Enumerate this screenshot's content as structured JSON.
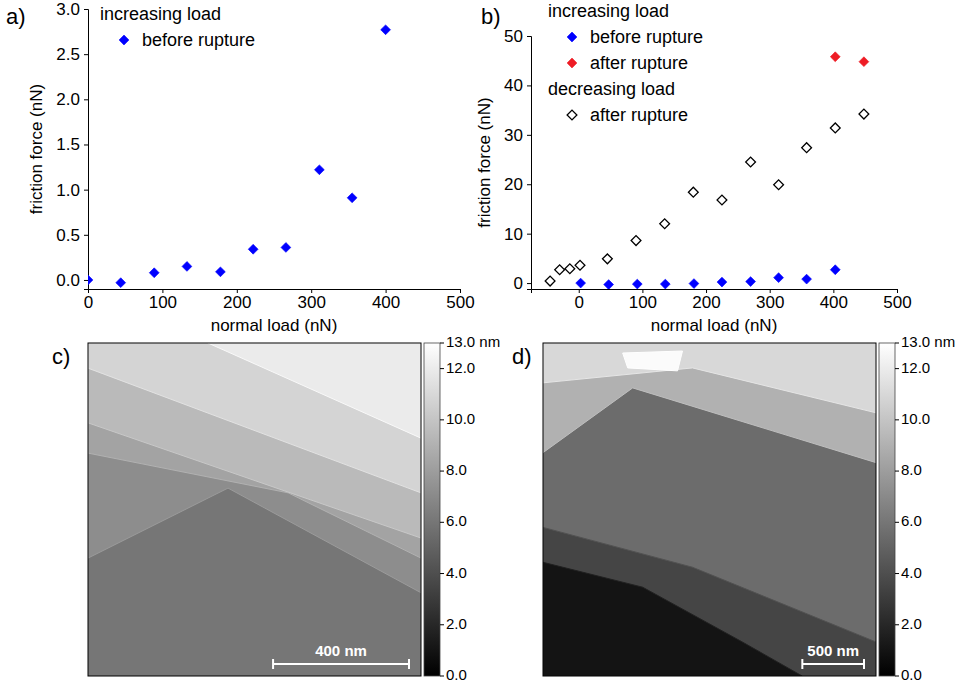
{
  "chart_data": [
    {
      "panel": "a)",
      "type": "scatter",
      "x_label": "normal load (nN)",
      "y_label": "friction force (nN)",
      "xlim": [
        0,
        500
      ],
      "ylim": [
        -0.1,
        3.0
      ],
      "xticks": [
        0,
        100,
        200,
        300,
        400,
        500
      ],
      "yticks": [
        {
          "value": 0,
          "label": "0.0"
        },
        0.5,
        {
          "value": 1,
          "label": "1.0"
        },
        1.5,
        {
          "value": 2,
          "label": "2.0"
        },
        2.5,
        {
          "value": 3,
          "label": "3.0"
        }
      ],
      "legend": "upper left",
      "series": [
        {
          "group": "increasing load",
          "name": "before rupture",
          "color": "#0000ff",
          "marker": "diamond",
          "x": [
            0,
            44,
            89,
            133,
            178,
            222,
            266,
            311,
            355,
            400
          ],
          "values": [
            0.0,
            -0.03,
            0.08,
            0.15,
            0.09,
            0.34,
            0.36,
            1.22,
            0.91,
            2.77
          ]
        }
      ]
    },
    {
      "panel": "b)",
      "type": "scatter",
      "x_label": "normal load (nN)",
      "y_label": "friction force (nN)",
      "xlim": [
        -75,
        500
      ],
      "ylim": [
        -1.2,
        50
      ],
      "xticks": [
        0,
        100,
        200,
        300,
        400,
        500
      ],
      "yticks": [
        0,
        10,
        20,
        30,
        40,
        50
      ],
      "legend": "upper left",
      "series": [
        {
          "group": "increasing load",
          "name": "before rupture",
          "color": "#0000ff",
          "marker": "diamond",
          "x": [
            3,
            47,
            92,
            136,
            181,
            225,
            270,
            314,
            358,
            403
          ],
          "values": [
            0.0,
            -0.3,
            -0.2,
            -0.2,
            -0.1,
            0.2,
            0.3,
            1.1,
            0.8,
            2.7
          ]
        },
        {
          "group": "increasing load",
          "name": "after rupture",
          "color": "#ee1c25",
          "marker": "diamond",
          "x": [
            403,
            448
          ],
          "values": [
            45.8,
            44.8
          ]
        },
        {
          "group": "decreasing load",
          "name": "after rupture",
          "color": "#000000",
          "marker": "open_diamond",
          "x": [
            -45,
            -30,
            -14,
            2,
            45,
            90,
            135,
            180,
            225,
            270,
            314,
            358,
            403,
            448
          ],
          "values": [
            0.4,
            2.7,
            2.9,
            3.6,
            4.9,
            8.6,
            12.0,
            18.4,
            16.8,
            24.5,
            19.9,
            27.4,
            31.4,
            34.2
          ]
        }
      ]
    },
    {
      "panel": "c)",
      "type": "image",
      "tick_labels": false,
      "xlim": [
        0,
        980
      ],
      "ylim": [
        0,
        980
      ],
      "scale_bar": {
        "length": 400,
        "label": "400 nm"
      },
      "colorbar_lim": [
        0,
        13
      ],
      "colorbar_ticks": [
        {
          "value": 0,
          "label": "0.0"
        },
        {
          "value": 2,
          "label": "2.0"
        },
        {
          "value": 4,
          "label": "4.0"
        },
        {
          "value": 6,
          "label": "6.0"
        },
        {
          "value": 8,
          "label": "8.0"
        },
        {
          "value": 10,
          "label": "10.0"
        },
        {
          "value": 12,
          "label": "12.0"
        },
        {
          "value": 13,
          "label": "13.0 nm"
        }
      ],
      "base_height": 6.0,
      "terraces": [
        {
          "height": 7.2,
          "points": [
            [
              0,
              0
            ],
            [
              980,
              0
            ],
            [
              980,
              735
            ],
            [
              412,
              427
            ],
            [
              0,
              633
            ]
          ]
        },
        {
          "height": 8.3,
          "points": [
            [
              0,
              0
            ],
            [
              980,
              0
            ],
            [
              980,
              633
            ],
            [
              589,
              441
            ],
            [
              0,
              324
            ]
          ]
        },
        {
          "height": 9.5,
          "points": [
            [
              0,
              0
            ],
            [
              980,
              0
            ],
            [
              980,
              574
            ],
            [
              0,
              235
            ]
          ]
        },
        {
          "height": 10.8,
          "points": [
            [
              0,
              0
            ],
            [
              980,
              0
            ],
            [
              980,
              441
            ],
            [
              0,
              74
            ]
          ]
        },
        {
          "height": 12.0,
          "points": [
            [
              353,
              0
            ],
            [
              980,
              0
            ],
            [
              980,
              280
            ]
          ]
        }
      ]
    },
    {
      "panel": "d)",
      "type": "image",
      "tick_labels": false,
      "xlim": [
        0,
        2700
      ],
      "ylim": [
        0,
        2700
      ],
      "scale_bar": {
        "length": 500,
        "label": "500 nm"
      },
      "colorbar_lim": [
        0,
        13
      ],
      "colorbar_ticks": [
        {
          "value": 0,
          "label": "0.0"
        },
        {
          "value": 2,
          "label": "2.0"
        },
        {
          "value": 4,
          "label": "4.0"
        },
        {
          "value": 6,
          "label": "6.0"
        },
        {
          "value": 8,
          "label": "8.0"
        },
        {
          "value": 10,
          "label": "10.0"
        },
        {
          "value": 12,
          "label": "12.0"
        },
        {
          "value": 13,
          "label": "13.0 nm"
        }
      ],
      "base_height": 5.5,
      "terraces": [
        {
          "height": 9.0,
          "points": [
            [
              0,
              0
            ],
            [
              2700,
              0
            ],
            [
              2700,
              970
            ],
            [
              727,
              364
            ],
            [
              0,
              889
            ]
          ]
        },
        {
          "height": 11.0,
          "points": [
            [
              0,
              0
            ],
            [
              2700,
              0
            ],
            [
              2700,
              566
            ],
            [
              1212,
              202
            ],
            [
              0,
              323
            ]
          ]
        },
        {
          "height": 12.8,
          "points": [
            [
              646,
              81
            ],
            [
              1131,
              65
            ],
            [
              1091,
              226
            ],
            [
              687,
              202
            ]
          ]
        },
        {
          "height": 3.5,
          "points": [
            [
              0,
              1495
            ],
            [
              1212,
              1818
            ],
            [
              2700,
              2424
            ],
            [
              2700,
              2700
            ],
            [
              0,
              2700
            ]
          ]
        },
        {
          "height": 1.0,
          "points": [
            [
              0,
              1778
            ],
            [
              808,
              1980
            ],
            [
              1616,
              2424
            ],
            [
              2101,
              2700
            ],
            [
              0,
              2700
            ]
          ]
        }
      ]
    }
  ]
}
